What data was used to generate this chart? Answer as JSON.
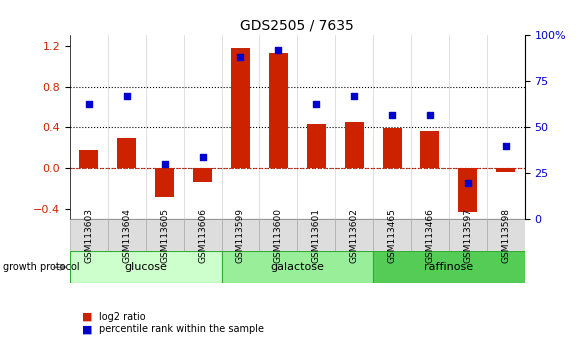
{
  "title": "GDS2505 / 7635",
  "samples": [
    "GSM113603",
    "GSM113604",
    "GSM113605",
    "GSM113606",
    "GSM113599",
    "GSM113600",
    "GSM113601",
    "GSM113602",
    "GSM113465",
    "GSM113466",
    "GSM113597",
    "GSM113598"
  ],
  "log2_ratio": [
    0.18,
    0.3,
    -0.28,
    -0.13,
    1.18,
    1.13,
    0.43,
    0.45,
    0.39,
    0.37,
    -0.43,
    -0.04
  ],
  "percentile_rank": [
    0.63,
    0.67,
    0.3,
    0.34,
    0.88,
    0.92,
    0.63,
    0.67,
    0.57,
    0.57,
    0.2,
    0.4
  ],
  "groups": [
    {
      "label": "glucose",
      "start": 0,
      "end": 4,
      "color": "#ccffcc"
    },
    {
      "label": "galactose",
      "start": 4,
      "end": 8,
      "color": "#99ee99"
    },
    {
      "label": "raffinose",
      "start": 8,
      "end": 12,
      "color": "#55cc55"
    }
  ],
  "bar_color": "#cc2200",
  "dot_color": "#0000cc",
  "ylim_left": [
    -0.5,
    1.3
  ],
  "ylim_right": [
    0,
    100
  ],
  "yticks_left": [
    -0.4,
    0.0,
    0.4,
    0.8,
    1.2
  ],
  "yticks_right": [
    0,
    25,
    50,
    75,
    100
  ],
  "hlines": [
    0.0,
    0.4,
    0.8
  ],
  "zero_line": 0.0,
  "bar_width": 0.5,
  "legend_items": [
    {
      "label": "log2 ratio",
      "color": "#cc2200",
      "marker": "s"
    },
    {
      "label": "percentile rank within the sample",
      "color": "#0000cc",
      "marker": "s"
    }
  ],
  "growth_protocol_label": "growth protocol",
  "background_color": "#ffffff"
}
